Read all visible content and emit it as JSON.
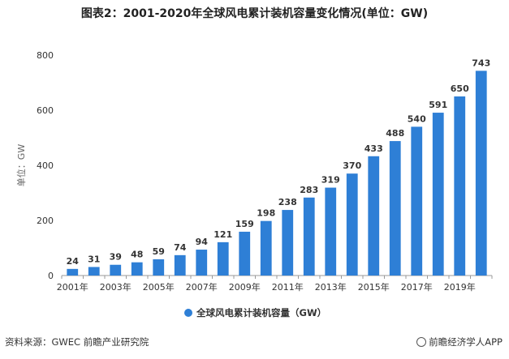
{
  "title": "图表2：2001-2020年全球风电累计装机容量变化情况(单位：GW)",
  "source": "资料来源：GWEC 前瞻产业研究院",
  "brand": "前瞻经济学人APP",
  "colors": {
    "bar": "#2E7FD6",
    "axis": "#999999",
    "text": "#333333"
  },
  "chart_data": {
    "type": "bar",
    "title": "图表2：2001-2020年全球风电累计装机容量变化情况(单位：GW)",
    "categories": [
      "2001年",
      "2002年",
      "2003年",
      "2004年",
      "2005年",
      "2006年",
      "2007年",
      "2008年",
      "2009年",
      "2010年",
      "2011年",
      "2012年",
      "2013年",
      "2014年",
      "2015年",
      "2016年",
      "2017年",
      "2018年",
      "2019年",
      "2020年"
    ],
    "tick_labels": [
      "2001年",
      "",
      "2003年",
      "",
      "2005年",
      "",
      "2007年",
      "",
      "2009年",
      "",
      "2011年",
      "",
      "2013年",
      "",
      "2015年",
      "",
      "2017年",
      "",
      "2019年",
      ""
    ],
    "series": [
      {
        "name": "全球风电累计装机容量（GW）",
        "values": [
          24,
          31,
          39,
          48,
          59,
          74,
          94,
          121,
          159,
          198,
          238,
          283,
          319,
          370,
          433,
          488,
          540,
          591,
          650,
          743
        ]
      }
    ],
    "ylabel": "单位：GW",
    "xlabel": "",
    "ylim": [
      0,
      800
    ],
    "yticks": [
      0,
      200,
      400,
      600,
      800
    ],
    "grid": false,
    "legend": "bottom-center"
  }
}
